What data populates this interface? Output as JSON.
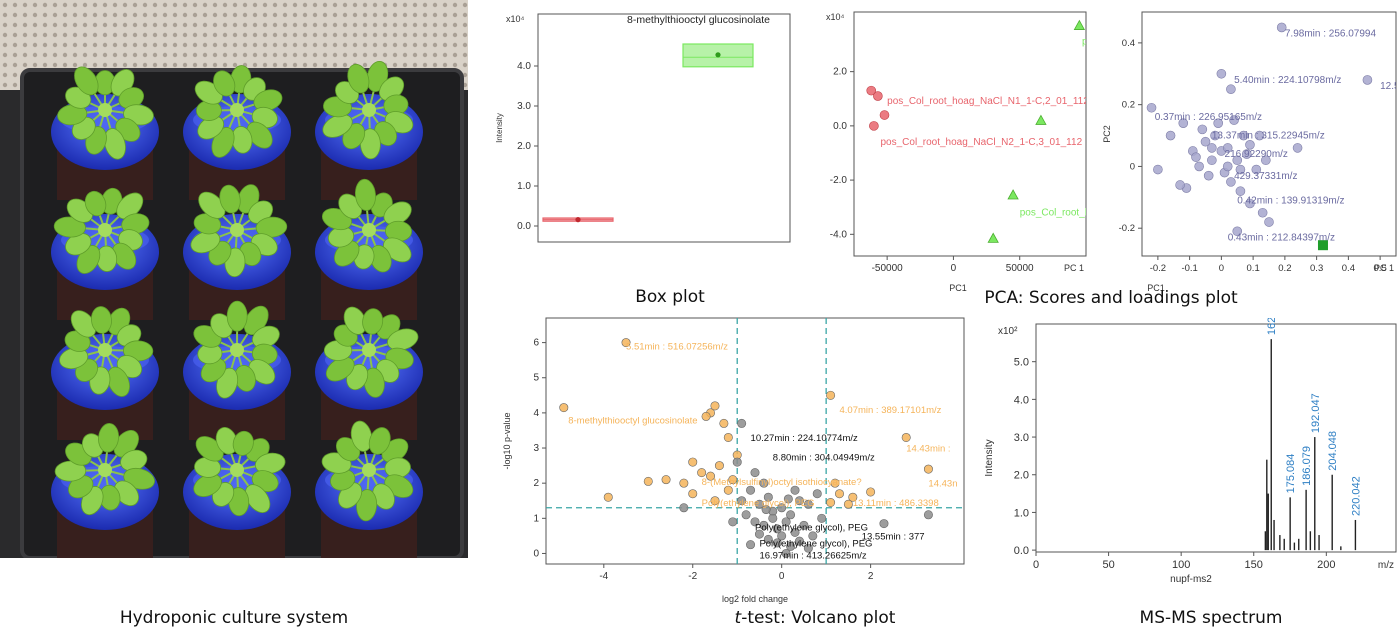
{
  "captions": {
    "photo": "Hydroponic culture system",
    "box": "Box plot",
    "pca": "PCA: Scores and loadings plot",
    "volcano_italic": "t",
    "volcano_rest": "-test: Volcano plot",
    "msms": "MS-MS spectrum"
  },
  "photo": {
    "description_icons": [
      "plant-rosette-icon",
      "blue-cap-bottle-icon"
    ],
    "rows": 4,
    "cols": 3
  },
  "colors": {
    "red": "#e8646c",
    "green": "#7be860",
    "orange": "#f5b45a",
    "gray": "#8c8c8c",
    "purple": "#a6a6cc",
    "blue": "#2e7fc4",
    "teal": "#3aa6a6"
  },
  "chart_data": [
    {
      "type": "box",
      "ylabel": "Intensity",
      "yscale": "x10⁴",
      "ylim": [
        -0.4,
        5.3
      ],
      "yticks": [
        0.0,
        1.0,
        2.0,
        3.0,
        4.0
      ],
      "annotation": "8-methylthiooctyl glucosinolate",
      "boxes": [
        {
          "group": "red",
          "q1": 0.12,
          "median": 0.16,
          "q3": 0.2,
          "mean": 0.16,
          "color": "#e8646c"
        },
        {
          "group": "green",
          "q1": 3.98,
          "median": 4.22,
          "q3": 4.55,
          "mean": 4.28,
          "color": "#7be860"
        }
      ]
    },
    {
      "type": "scatter",
      "xlabel": "PC1",
      "xlabel_end": "PC 1",
      "yscale": "x10⁴",
      "xlim": [
        -75000,
        100000
      ],
      "ylim": [
        -4.8,
        4.2
      ],
      "xticks": [
        -50000,
        0,
        50000
      ],
      "yticks": [
        -4.0,
        -2.0,
        0.0,
        2.0
      ],
      "labels": [
        {
          "text": "pos_Col_root_hoag_NaCl_N1_1-C,2_01_112",
          "x": -50000,
          "y": 0.8,
          "color": "#e8646c"
        },
        {
          "text": "pos_Col_root_hoag_NaCl_N2_1-C,3_01_112",
          "x": -55000,
          "y": -0.7,
          "color": "#e8646c"
        },
        {
          "text": "pos",
          "x": 97000,
          "y": 3.0,
          "color": "#7be860"
        },
        {
          "text": "pos_Col_root_hoag",
          "x": 50000,
          "y": -3.3,
          "color": "#7be860"
        }
      ],
      "series": [
        {
          "name": "",
          "marker": "circle",
          "color": "#e8646c",
          "points": [
            [
              -62000,
              1.3
            ],
            [
              -57000,
              1.1
            ],
            [
              -52000,
              0.4
            ],
            [
              -60000,
              0.0
            ]
          ]
        },
        {
          "name": "",
          "marker": "triangle",
          "color": "#7be860",
          "points": [
            [
              95000,
              3.7
            ],
            [
              66000,
              0.2
            ],
            [
              45000,
              -2.55
            ],
            [
              30000,
              -4.15
            ]
          ]
        }
      ]
    },
    {
      "type": "scatter",
      "xlabel": "PC1",
      "ylabel": "PC2",
      "xlabel_end": "PC 1",
      "xlim": [
        -0.25,
        0.55
      ],
      "ylim": [
        -0.29,
        0.5
      ],
      "xticks": [
        -0.2,
        -0.1,
        0,
        0.1,
        0.2,
        0.3,
        0.4,
        0.5
      ],
      "xtick_labels": [
        "-0.2",
        "-0.1",
        "0",
        "0.1",
        "0.2",
        "0.3",
        "0.4",
        "0.5"
      ],
      "yticks": [
        -0.2,
        0,
        0.2,
        0.4
      ],
      "labels": [
        {
          "text": "7.98min : 256.07994",
          "x": 0.2,
          "y": 0.42
        },
        {
          "text": "12.5",
          "x": 0.5,
          "y": 0.25
        },
        {
          "text": "5.40min : 224.10798m/z",
          "x": 0.04,
          "y": 0.27
        },
        {
          "text": "0.37min : 226.95165m/z",
          "x": -0.21,
          "y": 0.15
        },
        {
          "text": "13.37min : 315.22945m/z",
          "x": -0.03,
          "y": 0.09
        },
        {
          "text": "216.92290m/z",
          "x": 0.01,
          "y": 0.03
        },
        {
          "text": "429.37331m/z",
          "x": 0.04,
          "y": -0.04
        },
        {
          "text": "0.42min : 139.91319m/z",
          "x": 0.05,
          "y": -0.12
        },
        {
          "text": "0.43min : 212.84397m/z",
          "x": 0.02,
          "y": -0.24
        }
      ],
      "series": [
        {
          "name": "",
          "marker": "circle",
          "color": "#a6a6cc",
          "points": [
            [
              0.19,
              0.45
            ],
            [
              0.46,
              0.28
            ],
            [
              0.0,
              0.3
            ],
            [
              0.03,
              0.25
            ],
            [
              -0.22,
              0.19
            ],
            [
              -0.16,
              0.1
            ],
            [
              -0.12,
              0.14
            ],
            [
              -0.09,
              0.05
            ],
            [
              -0.05,
              0.08
            ],
            [
              -0.03,
              0.02
            ],
            [
              -0.07,
              0.0
            ],
            [
              -0.02,
              0.1
            ],
            [
              0.0,
              0.05
            ],
            [
              0.01,
              -0.02
            ],
            [
              0.02,
              0.06
            ],
            [
              -0.04,
              -0.03
            ],
            [
              0.03,
              -0.05
            ],
            [
              0.05,
              0.02
            ],
            [
              0.07,
              0.1
            ],
            [
              0.09,
              0.07
            ],
            [
              0.11,
              -0.01
            ],
            [
              0.14,
              0.02
            ],
            [
              0.06,
              -0.08
            ],
            [
              0.09,
              -0.12
            ],
            [
              0.13,
              -0.15
            ],
            [
              0.15,
              -0.18
            ],
            [
              0.05,
              -0.21
            ],
            [
              -0.11,
              -0.07
            ],
            [
              -0.13,
              -0.06
            ],
            [
              -0.2,
              -0.01
            ],
            [
              -0.01,
              0.14
            ],
            [
              0.04,
              0.15
            ],
            [
              -0.06,
              0.12
            ],
            [
              0.02,
              0.0
            ],
            [
              0.08,
              0.04
            ],
            [
              0.24,
              0.06
            ],
            [
              -0.08,
              0.03
            ],
            [
              0.12,
              0.1
            ],
            [
              0.06,
              -0.01
            ],
            [
              -0.03,
              0.06
            ]
          ]
        },
        {
          "name": "",
          "marker": "square",
          "color": "#1f9e2a",
          "points": [
            [
              0.32,
              -0.255
            ]
          ]
        }
      ]
    },
    {
      "type": "scatter",
      "xlabel": "log2 fold change",
      "ylabel": "-log10 p-value",
      "xlim": [
        -5.3,
        4.1
      ],
      "ylim": [
        -0.3,
        6.7
      ],
      "xticks": [
        -4,
        -2,
        0,
        2
      ],
      "yticks": [
        0,
        1,
        2,
        3,
        4,
        5,
        6
      ],
      "thresholds": {
        "x": [
          -1,
          1
        ],
        "y": 1.3
      },
      "labels": [
        {
          "text": "5.51min : 516.07256m/z",
          "x": -3.5,
          "y": 5.8,
          "color": "#f5b45a"
        },
        {
          "text": "8-methylthiooctyl glucosinolate",
          "x": -4.8,
          "y": 3.7,
          "color": "#f5b45a"
        },
        {
          "text": "4.07min : 389.17101m/z",
          "x": 1.3,
          "y": 4.0,
          "color": "#f5b45a"
        },
        {
          "text": "10.27min : 224.10774m/z",
          "x": -0.7,
          "y": 3.2,
          "color": "#111111"
        },
        {
          "text": "14.43min :",
          "x": 2.8,
          "y": 2.9,
          "color": "#f5b45a"
        },
        {
          "text": "8.80min : 304.04949m/z",
          "x": -0.2,
          "y": 2.65,
          "color": "#111111"
        },
        {
          "text": "14.43n",
          "x": 3.3,
          "y": 1.9,
          "color": "#f5b45a"
        },
        {
          "text": "8-(Methylsulfinyl)octyl isothiocyanate?",
          "x": -1.8,
          "y": 1.95,
          "color": "#f5b45a"
        },
        {
          "text": "Poly(ethylene glycol), PEG",
          "x": -1.8,
          "y": 1.35,
          "color": "#f5b45a"
        },
        {
          "text": "13.11min : 486.3398",
          "x": 1.6,
          "y": 1.35,
          "color": "#f5b45a"
        },
        {
          "text": "Poly(ethylene glycol), PEG",
          "x": -0.6,
          "y": 0.65,
          "color": "#111111"
        },
        {
          "text": "13.55min : 377",
          "x": 1.8,
          "y": 0.4,
          "color": "#111111"
        },
        {
          "text": "Poly(ethylene glycol), PEG",
          "x": -0.5,
          "y": 0.2,
          "color": "#111111"
        },
        {
          "text": "16.97min : 413.26625m/z",
          "x": -0.5,
          "y": -0.15,
          "color": "#111111"
        }
      ],
      "series": [
        {
          "name": "",
          "marker": "circle",
          "color": "#f5b45a",
          "points": [
            [
              -3.5,
              6.0
            ],
            [
              -4.9,
              4.15
            ],
            [
              1.1,
              4.5
            ],
            [
              -1.6,
              4.0
            ],
            [
              -1.7,
              3.9
            ],
            [
              -1.5,
              4.2
            ],
            [
              -1.3,
              3.7
            ],
            [
              -1.2,
              3.3
            ],
            [
              2.8,
              3.3
            ],
            [
              3.3,
              2.4
            ],
            [
              -1.0,
              2.8
            ],
            [
              -2.0,
              2.6
            ],
            [
              -1.8,
              2.3
            ],
            [
              -2.2,
              2.0
            ],
            [
              -1.6,
              2.2
            ],
            [
              -1.4,
              2.5
            ],
            [
              -2.6,
              2.1
            ],
            [
              -1.2,
              1.8
            ],
            [
              -2.0,
              1.7
            ],
            [
              -3.9,
              1.6
            ],
            [
              -1.5,
              1.5
            ],
            [
              1.3,
              1.7
            ],
            [
              1.6,
              1.6
            ],
            [
              2.0,
              1.75
            ],
            [
              1.1,
              1.45
            ],
            [
              1.5,
              1.4
            ],
            [
              -3.0,
              2.05
            ],
            [
              -1.1,
              2.1
            ],
            [
              1.2,
              2.0
            ]
          ]
        },
        {
          "name": "",
          "marker": "circle",
          "color": "#8c8c8c",
          "points": [
            [
              -0.9,
              3.7
            ],
            [
              -1.0,
              2.6
            ],
            [
              -0.6,
              2.3
            ],
            [
              -0.4,
              2.0
            ],
            [
              -0.7,
              1.8
            ],
            [
              -0.3,
              1.6
            ],
            [
              -0.5,
              1.4
            ],
            [
              -0.2,
              1.2
            ],
            [
              0.0,
              1.3
            ],
            [
              0.2,
              1.1
            ],
            [
              0.4,
              1.5
            ],
            [
              0.6,
              1.4
            ],
            [
              0.8,
              1.7
            ],
            [
              -0.8,
              1.1
            ],
            [
              -0.6,
              0.9
            ],
            [
              -0.4,
              0.8
            ],
            [
              -0.1,
              0.7
            ],
            [
              0.1,
              0.9
            ],
            [
              0.3,
              0.6
            ],
            [
              0.5,
              0.8
            ],
            [
              0.7,
              0.5
            ],
            [
              -0.3,
              0.4
            ],
            [
              -0.1,
              0.3
            ],
            [
              0.2,
              0.2
            ],
            [
              0.4,
              0.35
            ],
            [
              0.6,
              0.15
            ],
            [
              -0.5,
              0.55
            ],
            [
              -0.2,
              1.0
            ],
            [
              0.0,
              0.5
            ],
            [
              0.1,
              0.0
            ],
            [
              -2.2,
              1.3
            ],
            [
              -1.1,
              0.9
            ],
            [
              2.3,
              0.85
            ],
            [
              3.3,
              1.1
            ],
            [
              -0.7,
              0.25
            ],
            [
              0.9,
              1.0
            ],
            [
              0.3,
              1.8
            ],
            [
              -0.9,
              1.5
            ],
            [
              0.15,
              1.55
            ],
            [
              -0.35,
              1.25
            ]
          ]
        }
      ]
    },
    {
      "type": "bar",
      "xlabel": "nupf-ms2",
      "xlabel_end": "m/z",
      "ylabel": "Intensity",
      "yscale": "x10²",
      "xlim": [
        0,
        248
      ],
      "ylim": [
        -0.05,
        6.0
      ],
      "xticks": [
        0,
        50,
        100,
        150,
        200
      ],
      "yticks": [
        0.0,
        1.0,
        2.0,
        3.0,
        4.0,
        5.0
      ],
      "peaks": [
        [
          158,
          0.5
        ],
        [
          159,
          2.4
        ],
        [
          160,
          1.5
        ],
        [
          162.055,
          5.6
        ],
        [
          164,
          0.8
        ],
        [
          168,
          0.4
        ],
        [
          171,
          0.3
        ],
        [
          175.084,
          1.4
        ],
        [
          178,
          0.2
        ],
        [
          181,
          0.3
        ],
        [
          186.079,
          1.6
        ],
        [
          189,
          0.5
        ],
        [
          192.047,
          3.0
        ],
        [
          195,
          0.4
        ],
        [
          204.048,
          2.0
        ],
        [
          210,
          0.1
        ],
        [
          220.042,
          0.8
        ]
      ],
      "peak_labels": [
        {
          "text": "162.055",
          "x": 162.055,
          "y": 5.6
        },
        {
          "text": "175.084",
          "x": 175.084,
          "y": 1.4
        },
        {
          "text": "186.079",
          "x": 186.079,
          "y": 1.6
        },
        {
          "text": "192.047",
          "x": 192.047,
          "y": 3.0
        },
        {
          "text": "204.048",
          "x": 204.048,
          "y": 2.0
        },
        {
          "text": "220.042",
          "x": 220.042,
          "y": 0.8
        }
      ]
    }
  ]
}
